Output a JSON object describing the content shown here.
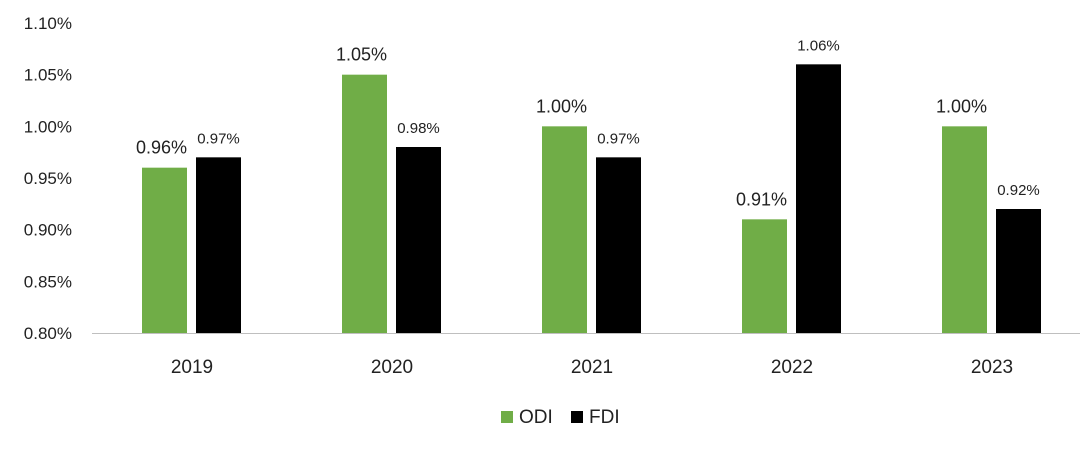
{
  "chart_data": {
    "type": "bar",
    "categories": [
      "2019",
      "2020",
      "2021",
      "2022",
      "2023"
    ],
    "series": [
      {
        "name": "ODI",
        "color": "#70ad47",
        "values": [
          0.96,
          1.05,
          1.0,
          0.91,
          1.0
        ],
        "labels": [
          "0.96%",
          "1.05%",
          "1.00%",
          "0.91%",
          "1.00%"
        ]
      },
      {
        "name": "FDI",
        "color": "#000000",
        "values": [
          0.97,
          0.98,
          0.97,
          1.06,
          0.92
        ],
        "labels": [
          "0.97%",
          "0.98%",
          "0.97%",
          "1.06%",
          "0.92%"
        ]
      }
    ],
    "ylim": [
      0.8,
      1.1
    ],
    "yticks": [
      0.8,
      0.85,
      0.9,
      0.95,
      1.0,
      1.05,
      1.1
    ],
    "ytick_labels": [
      "0.80%",
      "0.85%",
      "0.90%",
      "0.95%",
      "1.00%",
      "1.05%",
      "1.10%"
    ],
    "grid": false,
    "legend_position": "bottom-center",
    "title": "",
    "xlabel": "",
    "ylabel": ""
  }
}
